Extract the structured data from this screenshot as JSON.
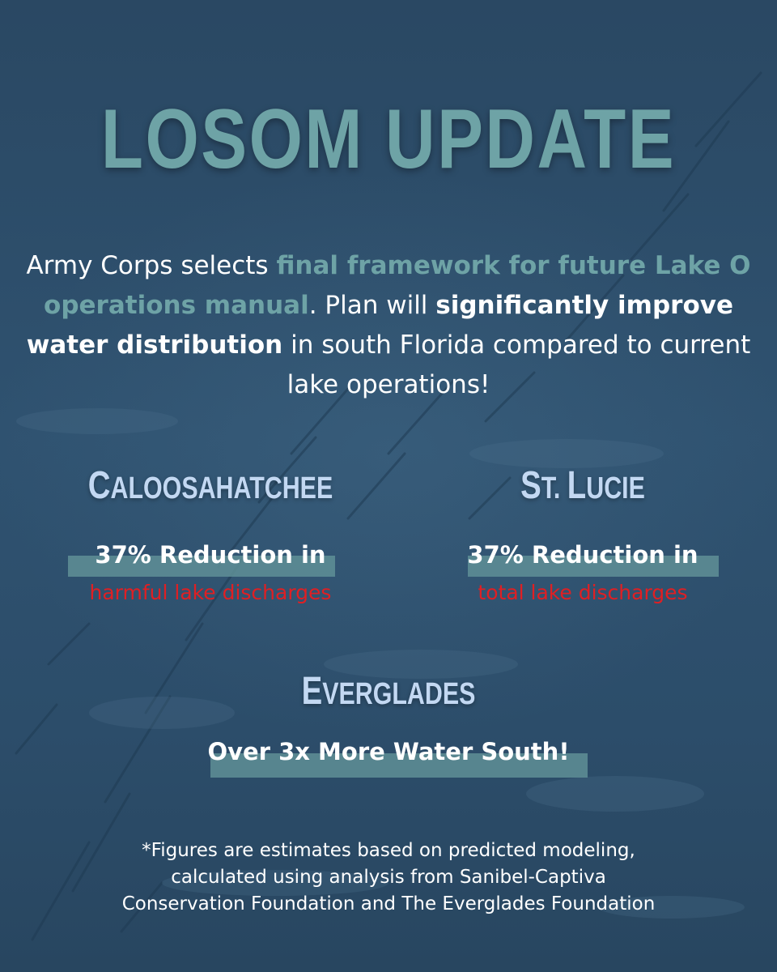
{
  "title": "LOSOM UPDATE",
  "intro": {
    "part1": "Army Corps selects ",
    "highlight1": "final framework for future Lake O operations manual",
    "part2": ". Plan will ",
    "highlight2": "significantly improve water distribution",
    "part3": " in south Florida compared to current lake operations!"
  },
  "regions": [
    {
      "name_initial": "C",
      "name_rest": "ALOOSAHATCHEE",
      "stat_line1": "37% Reduction in",
      "stat_line2": "harmful lake discharges"
    },
    {
      "name_initial": "S",
      "name_rest": "T. L",
      "name_initial2": "L",
      "name_rest2": "UCIE",
      "stat_line1": "37% Reduction in",
      "stat_line2": "total lake discharges"
    },
    {
      "name_initial": "E",
      "name_rest": "VERGLADES",
      "stat_line1": "Over 3x More Water South!"
    }
  ],
  "footnote": {
    "line1": "*Figures are estimates based on predicted modeling,",
    "line2": "calculated using analysis from Sanibel-Captiva",
    "line3": "Conservation Foundation and The Everglades Foundation"
  },
  "colors": {
    "background": "#2b4b66",
    "title": "#6ea3a6",
    "region_title": "#c3d8f2",
    "highlight_bar": "#5f8f97",
    "discharge_red": "#e01f23"
  }
}
